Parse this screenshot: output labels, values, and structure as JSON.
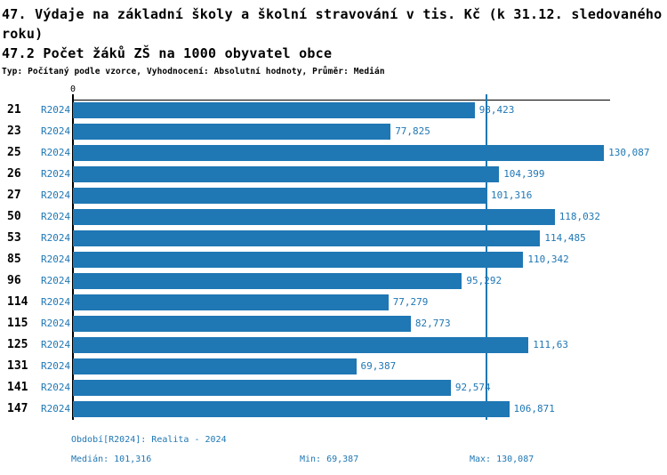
{
  "header": {
    "title": "47. Výdaje na základní školy a školní stravování v tis. Kč (k 31.12. sledovaného roku)",
    "indicator": "47.2 Počet žáků ZŠ na 1000 obyvatel obce",
    "meta": "Typ: Počítaný podle vzorce, Vyhodnocení: Absolutní hodnoty, Průměr: Medián"
  },
  "chart_data": {
    "type": "bar",
    "orientation": "horizontal",
    "title": "47.2 Počet žáků ZŠ na 1000 obyvatel obce",
    "categories": [
      "21",
      "23",
      "25",
      "26",
      "27",
      "50",
      "53",
      "85",
      "96",
      "114",
      "115",
      "125",
      "131",
      "141",
      "147"
    ],
    "row_series_label": "R2024",
    "series": [
      {
        "name": "R2024",
        "values": [
          98.423,
          77.825,
          130.087,
          104.399,
          101.316,
          118.032,
          114.485,
          110.342,
          95.292,
          77.279,
          82.773,
          111.63,
          69.387,
          92.574,
          106.871
        ]
      }
    ],
    "value_labels": [
      "98,423",
      "77,825",
      "130,087",
      "104,399",
      "101,316",
      "118,032",
      "114,485",
      "110,342",
      "95,292",
      "77,279",
      "82,773",
      "111,63",
      "69,387",
      "92,574",
      "106,871"
    ],
    "zero_label": "0",
    "xlim": [
      0,
      131.6
    ],
    "median_value": 101.316,
    "grid": false,
    "legend_position": "none",
    "bar_color": "#1f77b4",
    "median_line_color": "#1f77b4",
    "label_color": "#1f77b4",
    "axis_color": "#000000"
  },
  "footer": {
    "period": "Období[R2024]: Realita - 2024",
    "median": "Medián: 101,316",
    "min": "Min: 69,387",
    "max": "Max: 130,087"
  }
}
